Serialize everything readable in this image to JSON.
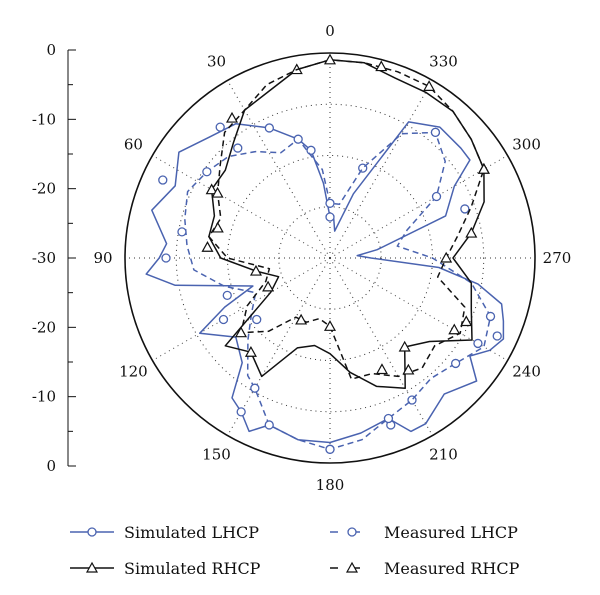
{
  "chart_data": {
    "type": "polar_line",
    "title": "",
    "radial_axis": {
      "ticks": [
        0,
        -10,
        -20,
        -30,
        -20,
        -10,
        0
      ],
      "labels": [
        "0",
        "-10",
        "-20",
        "-30",
        "-20",
        "-10",
        "0"
      ],
      "range": [
        -30,
        0
      ]
    },
    "angle_labels": [
      "0",
      "30",
      "60",
      "90",
      "120",
      "150",
      "180",
      "210",
      "240",
      "270",
      "300",
      "330"
    ],
    "colors": {
      "blue": "#4a63b0",
      "black": "#111111"
    },
    "series": [
      {
        "name": "Simulated LHCP",
        "color": "#4a63b0",
        "dash": "solid",
        "marker": "circle",
        "angles": [
          0,
          5,
          10,
          15,
          25,
          35,
          45,
          55,
          65,
          75,
          85,
          90,
          95,
          100,
          110,
          115,
          120,
          130,
          140,
          145,
          150,
          155,
          160,
          170,
          180,
          190,
          200,
          205,
          210,
          220,
          230,
          235,
          240,
          245,
          250,
          255,
          260,
          265,
          270,
          275,
          280,
          290,
          300,
          305,
          310,
          320,
          330,
          340,
          350,
          355
        ],
        "values": [
          -24,
          -19,
          -14,
          -12,
          -9,
          -6,
          -5,
          -3,
          -5,
          -3,
          -6,
          -5,
          -3,
          -7,
          -18,
          -13,
          -8,
          -12,
          -10,
          -5,
          -4,
          -2,
          -4,
          -3,
          -3,
          -4,
          -5,
          -2,
          -2,
          -4,
          -2,
          -5,
          -3,
          -2,
          -3,
          -4,
          -8,
          -14,
          -24,
          -26,
          -23,
          -12,
          -9,
          -5,
          -5,
          -5,
          -7,
          -20,
          -26,
          -24
        ],
        "marker_angles": [
          0,
          10,
          25,
          40,
          65,
          90,
          120,
          150,
          180,
          200,
          210,
          240,
          245,
          290,
          320,
          340
        ],
        "marker_values": [
          -24,
          -14,
          -9,
          -5,
          -3,
          -6,
          -12,
          -4,
          -2,
          -4,
          -6,
          -5,
          -3,
          -9,
          -6,
          -16
        ]
      },
      {
        "name": "Measured LHCP",
        "color": "#4a63b0",
        "dash": "dashed",
        "marker": "circle",
        "angles": [
          0,
          5,
          10,
          15,
          25,
          35,
          45,
          55,
          65,
          75,
          85,
          95,
          105,
          115,
          125,
          135,
          145,
          150,
          160,
          170,
          180,
          190,
          200,
          210,
          220,
          230,
          240,
          250,
          260,
          270,
          280,
          290,
          300,
          310,
          320,
          330,
          340,
          350
        ],
        "values": [
          -22,
          -17,
          -15,
          -12,
          -13,
          -11,
          -9,
          -8,
          -7,
          -8,
          -9,
          -10,
          -14,
          -18,
          -16,
          -13,
          -9,
          -8,
          -4,
          -3,
          -2,
          -3,
          -5,
          -6,
          -7,
          -6,
          -4,
          -5,
          -9,
          -15,
          -20,
          -18,
          -12,
          -8,
          -6,
          -9,
          -16,
          -22
        ],
        "marker_angles": [
          0,
          15,
          40,
          55,
          80,
          110,
          130,
          150,
          160,
          180,
          200,
          230,
          250,
          300,
          320
        ],
        "marker_values": [
          -22,
          -12,
          -9,
          -8,
          -8,
          -14,
          -16,
          -8,
          -4,
          -2,
          -5,
          -6,
          -5,
          -12,
          -6
        ]
      },
      {
        "name": "Simulated RHCP",
        "color": "#111111",
        "dash": "solid",
        "marker": "triangle",
        "angles": [
          0,
          10,
          20,
          30,
          40,
          50,
          60,
          70,
          80,
          90,
          100,
          110,
          120,
          130,
          140,
          150,
          160,
          170,
          180,
          190,
          200,
          210,
          220,
          230,
          240,
          250,
          260,
          270,
          280,
          290,
          300,
          310,
          320,
          330,
          340,
          350
        ],
        "values": [
          -1,
          -2,
          -4,
          -5,
          -8,
          -10,
          -10,
          -12,
          -12,
          -14,
          -19,
          -22,
          -20,
          -10,
          -12,
          -10,
          -16,
          -17,
          -16,
          -13,
          -10,
          -8,
          -13,
          -11,
          -6,
          -8,
          -9,
          -12,
          -9,
          -6,
          -4,
          -3,
          -2,
          -2,
          -2,
          -1
        ],
        "marker_angles": [
          10,
          60,
          100,
          140,
          220,
          280,
          300
        ],
        "marker_values": [
          -2,
          -10,
          -19,
          -12,
          -13,
          -9,
          -4
        ]
      },
      {
        "name": "Measured RHCP",
        "color": "#111111",
        "dash": "dashed",
        "marker": "triangle",
        "angles": [
          0,
          10,
          20,
          30,
          40,
          50,
          60,
          70,
          80,
          90,
          100,
          110,
          120,
          130,
          140,
          150,
          160,
          170,
          180,
          190,
          200,
          210,
          220,
          230,
          240,
          250,
          260,
          270,
          280,
          290,
          300,
          310,
          320,
          330,
          340,
          350
        ],
        "values": [
          -1,
          -2,
          -3,
          -5,
          -6,
          -9,
          -11,
          -13,
          -12,
          -15,
          -21,
          -20,
          -16,
          -13,
          -16,
          -20,
          -20,
          -21,
          -20,
          -12,
          -12,
          -10,
          -9,
          -10,
          -8,
          -9,
          -14,
          -13,
          -11,
          -8,
          -4,
          -3,
          -2,
          -1,
          -1,
          -1
        ],
        "marker_angles": [
          0,
          35,
          60,
          75,
          85,
          115,
          130,
          155,
          180,
          205,
          215,
          240,
          245,
          270,
          300,
          330,
          345
        ],
        "marker_values": [
          -1,
          -5,
          -11,
          -13,
          -12,
          -20,
          -13,
          -20,
          -20,
          -12,
          -10,
          -9,
          -8,
          -13,
          -4,
          -1,
          -1
        ]
      }
    ],
    "legend": {
      "placement": "bottom"
    }
  }
}
